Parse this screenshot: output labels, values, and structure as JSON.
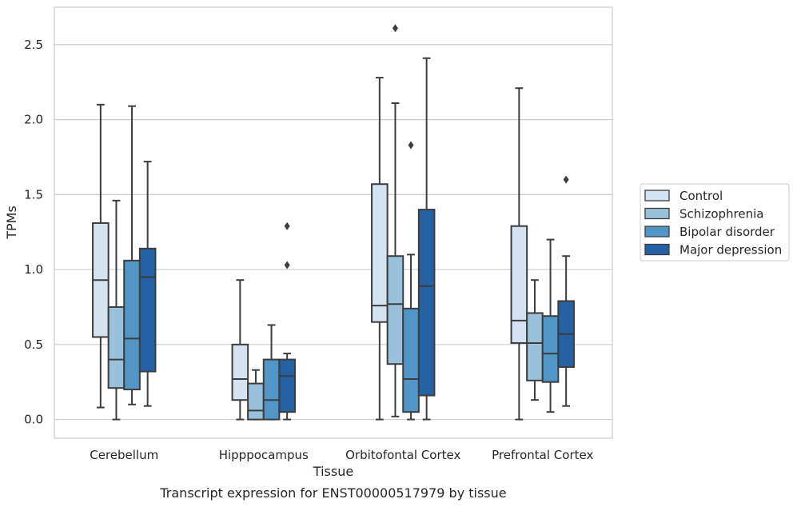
{
  "chart_data": {
    "type": "box",
    "title": "",
    "caption": "Transcript expression for ENST00000517979 by tissue",
    "xlabel": "Tissue",
    "ylabel": "TPMs",
    "ylim": [
      -0.125,
      2.75
    ],
    "yticks": [
      0.0,
      0.5,
      1.0,
      1.5,
      2.0,
      2.5
    ],
    "ytick_labels": [
      "0.0",
      "0.5",
      "1.0",
      "1.5",
      "2.0",
      "2.5"
    ],
    "grid": "horizontal",
    "legend_position": "right",
    "categories": [
      "Cerebellum",
      "Hipppocampus",
      "Orbitofontal Cortex",
      "Prefrontal Cortex"
    ],
    "series": [
      {
        "name": "Control",
        "color": "#d3e3f2",
        "boxes": [
          {
            "whislo": 0.08,
            "q1": 0.55,
            "med": 0.93,
            "q3": 1.31,
            "whishi": 2.1,
            "fliers": []
          },
          {
            "whislo": 0.0,
            "q1": 0.13,
            "med": 0.27,
            "q3": 0.5,
            "whishi": 0.93,
            "fliers": []
          },
          {
            "whislo": 0.0,
            "q1": 0.65,
            "med": 0.76,
            "q3": 1.57,
            "whishi": 2.28,
            "fliers": []
          },
          {
            "whislo": 0.0,
            "q1": 0.51,
            "med": 0.66,
            "q3": 1.29,
            "whishi": 2.21,
            "fliers": []
          }
        ]
      },
      {
        "name": "Schizophrenia",
        "color": "#9ac1db",
        "boxes": [
          {
            "whislo": 0.0,
            "q1": 0.21,
            "med": 0.4,
            "q3": 0.75,
            "whishi": 1.46,
            "fliers": []
          },
          {
            "whislo": 0.0,
            "q1": 0.0,
            "med": 0.06,
            "q3": 0.24,
            "whishi": 0.33,
            "fliers": []
          },
          {
            "whislo": 0.02,
            "q1": 0.37,
            "med": 0.77,
            "q3": 1.09,
            "whishi": 2.11,
            "fliers": [
              2.61
            ]
          },
          {
            "whislo": 0.13,
            "q1": 0.26,
            "med": 0.51,
            "q3": 0.71,
            "whishi": 0.93,
            "fliers": []
          }
        ]
      },
      {
        "name": "Bipolar disorder",
        "color": "#5296c7",
        "boxes": [
          {
            "whislo": 0.1,
            "q1": 0.2,
            "med": 0.54,
            "q3": 1.06,
            "whishi": 2.09,
            "fliers": []
          },
          {
            "whislo": 0.0,
            "q1": 0.0,
            "med": 0.13,
            "q3": 0.4,
            "whishi": 0.63,
            "fliers": []
          },
          {
            "whislo": 0.0,
            "q1": 0.05,
            "med": 0.27,
            "q3": 0.74,
            "whishi": 1.1,
            "fliers": [
              1.83
            ]
          },
          {
            "whislo": 0.05,
            "q1": 0.25,
            "med": 0.44,
            "q3": 0.69,
            "whishi": 1.2,
            "fliers": []
          }
        ]
      },
      {
        "name": "Major depression",
        "color": "#2562a5",
        "boxes": [
          {
            "whislo": 0.09,
            "q1": 0.32,
            "med": 0.95,
            "q3": 1.14,
            "whishi": 1.72,
            "fliers": []
          },
          {
            "whislo": 0.0,
            "q1": 0.05,
            "med": 0.29,
            "q3": 0.4,
            "whishi": 0.44,
            "fliers": [
              1.03,
              1.29
            ]
          },
          {
            "whislo": 0.0,
            "q1": 0.16,
            "med": 0.89,
            "q3": 1.4,
            "whishi": 2.41,
            "fliers": []
          },
          {
            "whislo": 0.09,
            "q1": 0.35,
            "med": 0.57,
            "q3": 0.79,
            "whishi": 1.09,
            "fliers": [
              1.6
            ]
          }
        ]
      }
    ]
  }
}
